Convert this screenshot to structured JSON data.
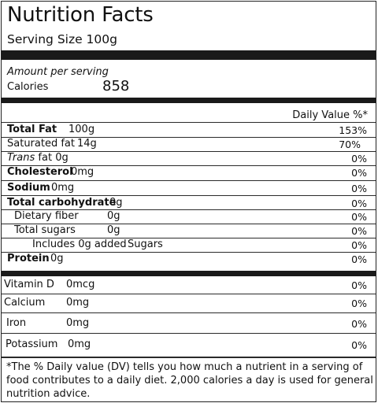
{
  "label": {
    "title": "Nutrition Facts",
    "serving_size": "Serving Size 100g",
    "amount_per_serving": "Amount per serving",
    "calories_label": "Calories",
    "calories_value": "858",
    "daily_value_header": "Daily Value %*",
    "nutrients": [
      {
        "label": "Total Fat",
        "amount": "100g",
        "dv": "153%"
      },
      {
        "label": "Saturated fat",
        "amount": "14g",
        "dv": "70%"
      },
      {
        "label_prefix": "Trans",
        "label": "fat",
        "amount": "0g",
        "dv": "0%"
      },
      {
        "label": "Cholesterol",
        "amount": "0mg",
        "dv": "0%"
      },
      {
        "label": "Sodium",
        "amount": "0mg",
        "dv": "0%"
      },
      {
        "label": "Total carbohydrate",
        "amount": "0g",
        "dv": "0%"
      },
      {
        "label": "Dietary fiber",
        "amount": "0g",
        "dv": "0%"
      },
      {
        "label": "Total sugars",
        "amount": "0g",
        "dv": "0%"
      },
      {
        "label": "Includes 0g added",
        "amount": "Sugars",
        "dv": "0%"
      },
      {
        "label": "Protein",
        "amount": "0g",
        "dv": "0%"
      }
    ],
    "vitamins": [
      {
        "label": "Vitamin D",
        "amount": "0mcg",
        "dv": "0%"
      },
      {
        "label": "Calcium",
        "amount": "0mg",
        "dv": "0%"
      },
      {
        "label": "Iron",
        "amount": "0mg",
        "dv": "0%"
      },
      {
        "label": "Potassium",
        "amount": "0mg",
        "dv": "0%"
      }
    ],
    "footnote": "*The % Daily value (DV) tells you how much a nutrient in a serving of food contributes to a daily diet. 2,000 calories a day is used for general nutrition advice."
  }
}
